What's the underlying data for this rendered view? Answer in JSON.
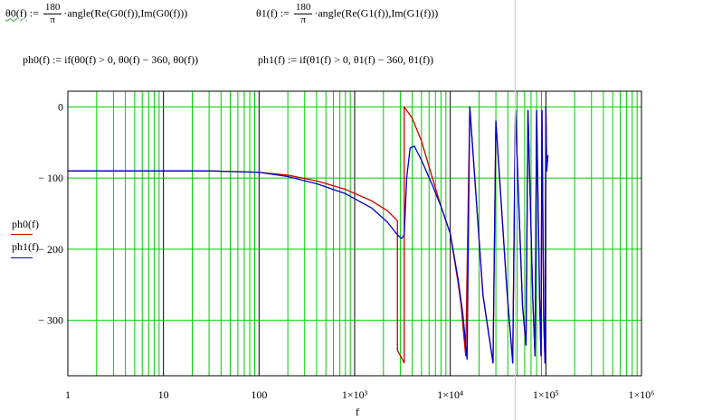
{
  "equations": {
    "theta0": {
      "lhs": "θ0(f)",
      "assign": ":=",
      "frac_num": "180",
      "frac_den": "π",
      "rhs": "·angle(Re(G0(f)),Im(G0(f)))"
    },
    "theta1": {
      "lhs": "θ1(f)",
      "assign": ":=",
      "frac_num": "180",
      "frac_den": "π",
      "rhs": "·angle(Re(G1(f)),Im(G1(f)))"
    },
    "ph0": {
      "text": "ph0(f) := if(θ0(f) > 0, θ0(f) − 360, θ0(f))"
    },
    "ph1": {
      "text": "ph1(f) := if(θ1(f) > 0, θ1(f) − 360, θ1(f))"
    }
  },
  "legend": {
    "ph0": {
      "label": "ph0(f)",
      "color": "#cc0000"
    },
    "ph1": {
      "label": "ph1(f)",
      "color": "#0000cc"
    }
  },
  "colors": {
    "grid": "#00cc00",
    "axes": "#000000"
  },
  "chart_data": {
    "type": "line",
    "title": "",
    "xlabel": "f",
    "ylabel": "",
    "x_scale": "log",
    "xlim": [
      1,
      1000000
    ],
    "ylim": [
      -378,
      22
    ],
    "x_tick_labels": [
      {
        "v": 1,
        "label": "1"
      },
      {
        "v": 10,
        "label": "10"
      },
      {
        "v": 100,
        "label": "100"
      },
      {
        "v": 1000,
        "label": "1×10³"
      },
      {
        "v": 10000,
        "label": "1×10⁴"
      },
      {
        "v": 100000,
        "label": "1×10⁵"
      },
      {
        "v": 1000000,
        "label": "1×10⁶"
      }
    ],
    "y_tick_labels": [
      {
        "v": 0,
        "label": "0"
      },
      {
        "v": -100,
        "label": "− 100"
      },
      {
        "v": -200,
        "label": "− 200"
      },
      {
        "v": -300,
        "label": "− 300"
      }
    ],
    "grid": true,
    "series": [
      {
        "name": "ph0(f)",
        "color": "#cc0000",
        "points": [
          [
            1,
            -90
          ],
          [
            10,
            -90
          ],
          [
            30,
            -90
          ],
          [
            100,
            -92
          ],
          [
            200,
            -96
          ],
          [
            400,
            -104
          ],
          [
            800,
            -116
          ],
          [
            1500,
            -132
          ],
          [
            2200,
            -146
          ],
          [
            2800,
            -160
          ],
          [
            2800,
            -342
          ],
          [
            3300,
            -360
          ],
          [
            3300,
            0
          ],
          [
            4000,
            -16
          ],
          [
            5000,
            -48
          ],
          [
            6500,
            -100
          ],
          [
            8000,
            -140
          ],
          [
            10000,
            -178
          ],
          [
            12000,
            -245
          ],
          [
            13000,
            -280
          ],
          [
            14500,
            -350
          ],
          [
            16000,
            0
          ],
          [
            22000,
            -265
          ],
          [
            28000,
            -360
          ],
          [
            30000,
            -20
          ],
          [
            39000,
            -255
          ],
          [
            45000,
            -360
          ],
          [
            48000,
            -5
          ],
          [
            57000,
            -280
          ],
          [
            62000,
            -335
          ],
          [
            65000,
            -5
          ],
          [
            73000,
            -270
          ],
          [
            77000,
            -350
          ],
          [
            80000,
            -5
          ],
          [
            86000,
            -270
          ],
          [
            89000,
            -350
          ],
          [
            91000,
            -5
          ],
          [
            95000,
            -300
          ],
          [
            98000,
            -360
          ],
          [
            100000,
            0
          ],
          [
            102000,
            -90
          ],
          [
            105000,
            -68
          ]
        ]
      },
      {
        "name": "ph1(f)",
        "color": "#0000cc",
        "points": [
          [
            1,
            -90
          ],
          [
            10,
            -90
          ],
          [
            30,
            -90
          ],
          [
            100,
            -92
          ],
          [
            200,
            -98
          ],
          [
            400,
            -108
          ],
          [
            800,
            -122
          ],
          [
            1500,
            -142
          ],
          [
            2200,
            -162
          ],
          [
            2800,
            -180
          ],
          [
            3100,
            -185
          ],
          [
            3300,
            -180
          ],
          [
            3500,
            -100
          ],
          [
            3800,
            -58
          ],
          [
            4200,
            -55
          ],
          [
            5000,
            -75
          ],
          [
            6500,
            -110
          ],
          [
            8000,
            -140
          ],
          [
            10000,
            -178
          ],
          [
            12000,
            -240
          ],
          [
            13500,
            -290
          ],
          [
            15000,
            -355
          ],
          [
            16000,
            0
          ],
          [
            22000,
            -265
          ],
          [
            28000,
            -360
          ],
          [
            30000,
            -20
          ],
          [
            39000,
            -255
          ],
          [
            45000,
            -360
          ],
          [
            48000,
            -5
          ],
          [
            57000,
            -280
          ],
          [
            62000,
            -335
          ],
          [
            65000,
            -5
          ],
          [
            73000,
            -270
          ],
          [
            77000,
            -350
          ],
          [
            80000,
            -5
          ],
          [
            86000,
            -270
          ],
          [
            89000,
            -350
          ],
          [
            91000,
            -5
          ],
          [
            95000,
            -300
          ],
          [
            98000,
            -360
          ],
          [
            100000,
            0
          ],
          [
            102000,
            -90
          ],
          [
            105000,
            -68
          ]
        ]
      }
    ]
  }
}
